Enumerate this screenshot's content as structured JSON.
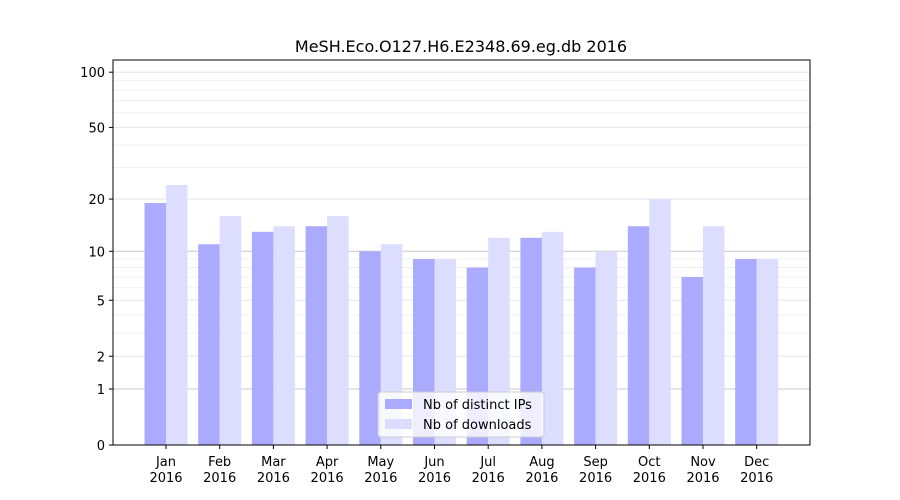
{
  "chart_data": {
    "type": "bar",
    "title": "MeSH.Eco.O127.H6.E2348.69.eg.db 2016",
    "xlabel": "",
    "ylabel": "",
    "yscale": "symlog",
    "ylim": [
      0,
      116
    ],
    "yticks": [
      0,
      1,
      2,
      5,
      10,
      20,
      50,
      100
    ],
    "categories": [
      [
        "Jan",
        "2016"
      ],
      [
        "Feb",
        "2016"
      ],
      [
        "Mar",
        "2016"
      ],
      [
        "Apr",
        "2016"
      ],
      [
        "May",
        "2016"
      ],
      [
        "Jun",
        "2016"
      ],
      [
        "Jul",
        "2016"
      ],
      [
        "Aug",
        "2016"
      ],
      [
        "Sep",
        "2016"
      ],
      [
        "Oct",
        "2016"
      ],
      [
        "Nov",
        "2016"
      ],
      [
        "Dec",
        "2016"
      ]
    ],
    "series": [
      {
        "name": "Nb of distinct IPs",
        "color": "#aaaaff",
        "values": [
          19,
          11,
          13,
          14,
          10,
          9,
          8,
          12,
          8,
          14,
          7,
          9
        ]
      },
      {
        "name": "Nb of downloads",
        "color": "#ddddff",
        "values": [
          24,
          16,
          14,
          16,
          11,
          9,
          12,
          13,
          10,
          20,
          14,
          9
        ]
      }
    ],
    "legend": "bottom-center",
    "grid": true
  }
}
